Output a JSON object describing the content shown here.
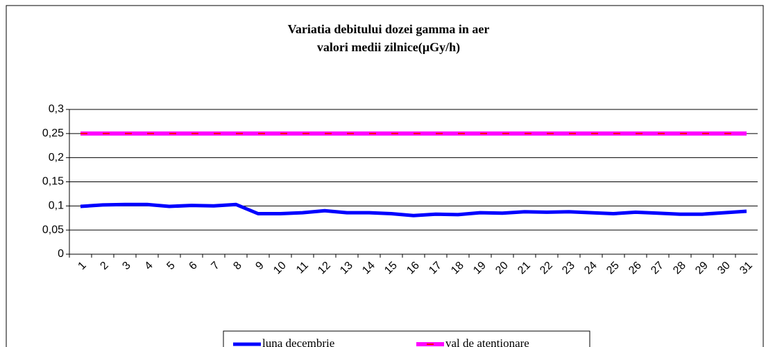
{
  "chart_data": {
    "type": "line",
    "title": "Variatia debitului dozei gamma in aer",
    "subtitle": "valori medii zilnice(µGy/h)",
    "categories": [
      "1",
      "2",
      "3",
      "4",
      "5",
      "6",
      "7",
      "8",
      "9",
      "10",
      "11",
      "12",
      "13",
      "14",
      "15",
      "16",
      "17",
      "18",
      "19",
      "20",
      "21",
      "22",
      "23",
      "24",
      "25",
      "26",
      "27",
      "28",
      "29",
      "30",
      "31"
    ],
    "series": [
      {
        "name": "luna decembrie",
        "color": "#0000ff",
        "values": [
          0.099,
          0.102,
          0.103,
          0.103,
          0.099,
          0.101,
          0.1,
          0.103,
          0.084,
          0.084,
          0.086,
          0.09,
          0.086,
          0.086,
          0.084,
          0.08,
          0.083,
          0.082,
          0.086,
          0.085,
          0.088,
          0.087,
          0.088,
          0.086,
          0.084,
          0.087,
          0.085,
          0.083,
          0.083,
          0.086,
          0.089
        ]
      },
      {
        "name": "val de atentionare",
        "color": "#ff00ff",
        "dash_color": "#ff0000",
        "values": [
          0.25,
          0.25,
          0.25,
          0.25,
          0.25,
          0.25,
          0.25,
          0.25,
          0.25,
          0.25,
          0.25,
          0.25,
          0.25,
          0.25,
          0.25,
          0.25,
          0.25,
          0.25,
          0.25,
          0.25,
          0.25,
          0.25,
          0.25,
          0.25,
          0.25,
          0.25,
          0.25,
          0.25,
          0.25,
          0.25,
          0.25
        ]
      }
    ],
    "ylim": [
      0,
      0.3
    ],
    "yticks": [
      0,
      {
        "value": 0.05,
        "label": "0,05"
      },
      {
        "value": 0.1,
        "label": "0,1"
      },
      {
        "value": 0.15,
        "label": "0,15"
      },
      {
        "value": 0.2,
        "label": "0,2"
      },
      {
        "value": 0.25,
        "label": "0,25"
      },
      {
        "value": 0.3,
        "label": "0,3"
      }
    ],
    "grid": true,
    "legend": "bottom"
  }
}
